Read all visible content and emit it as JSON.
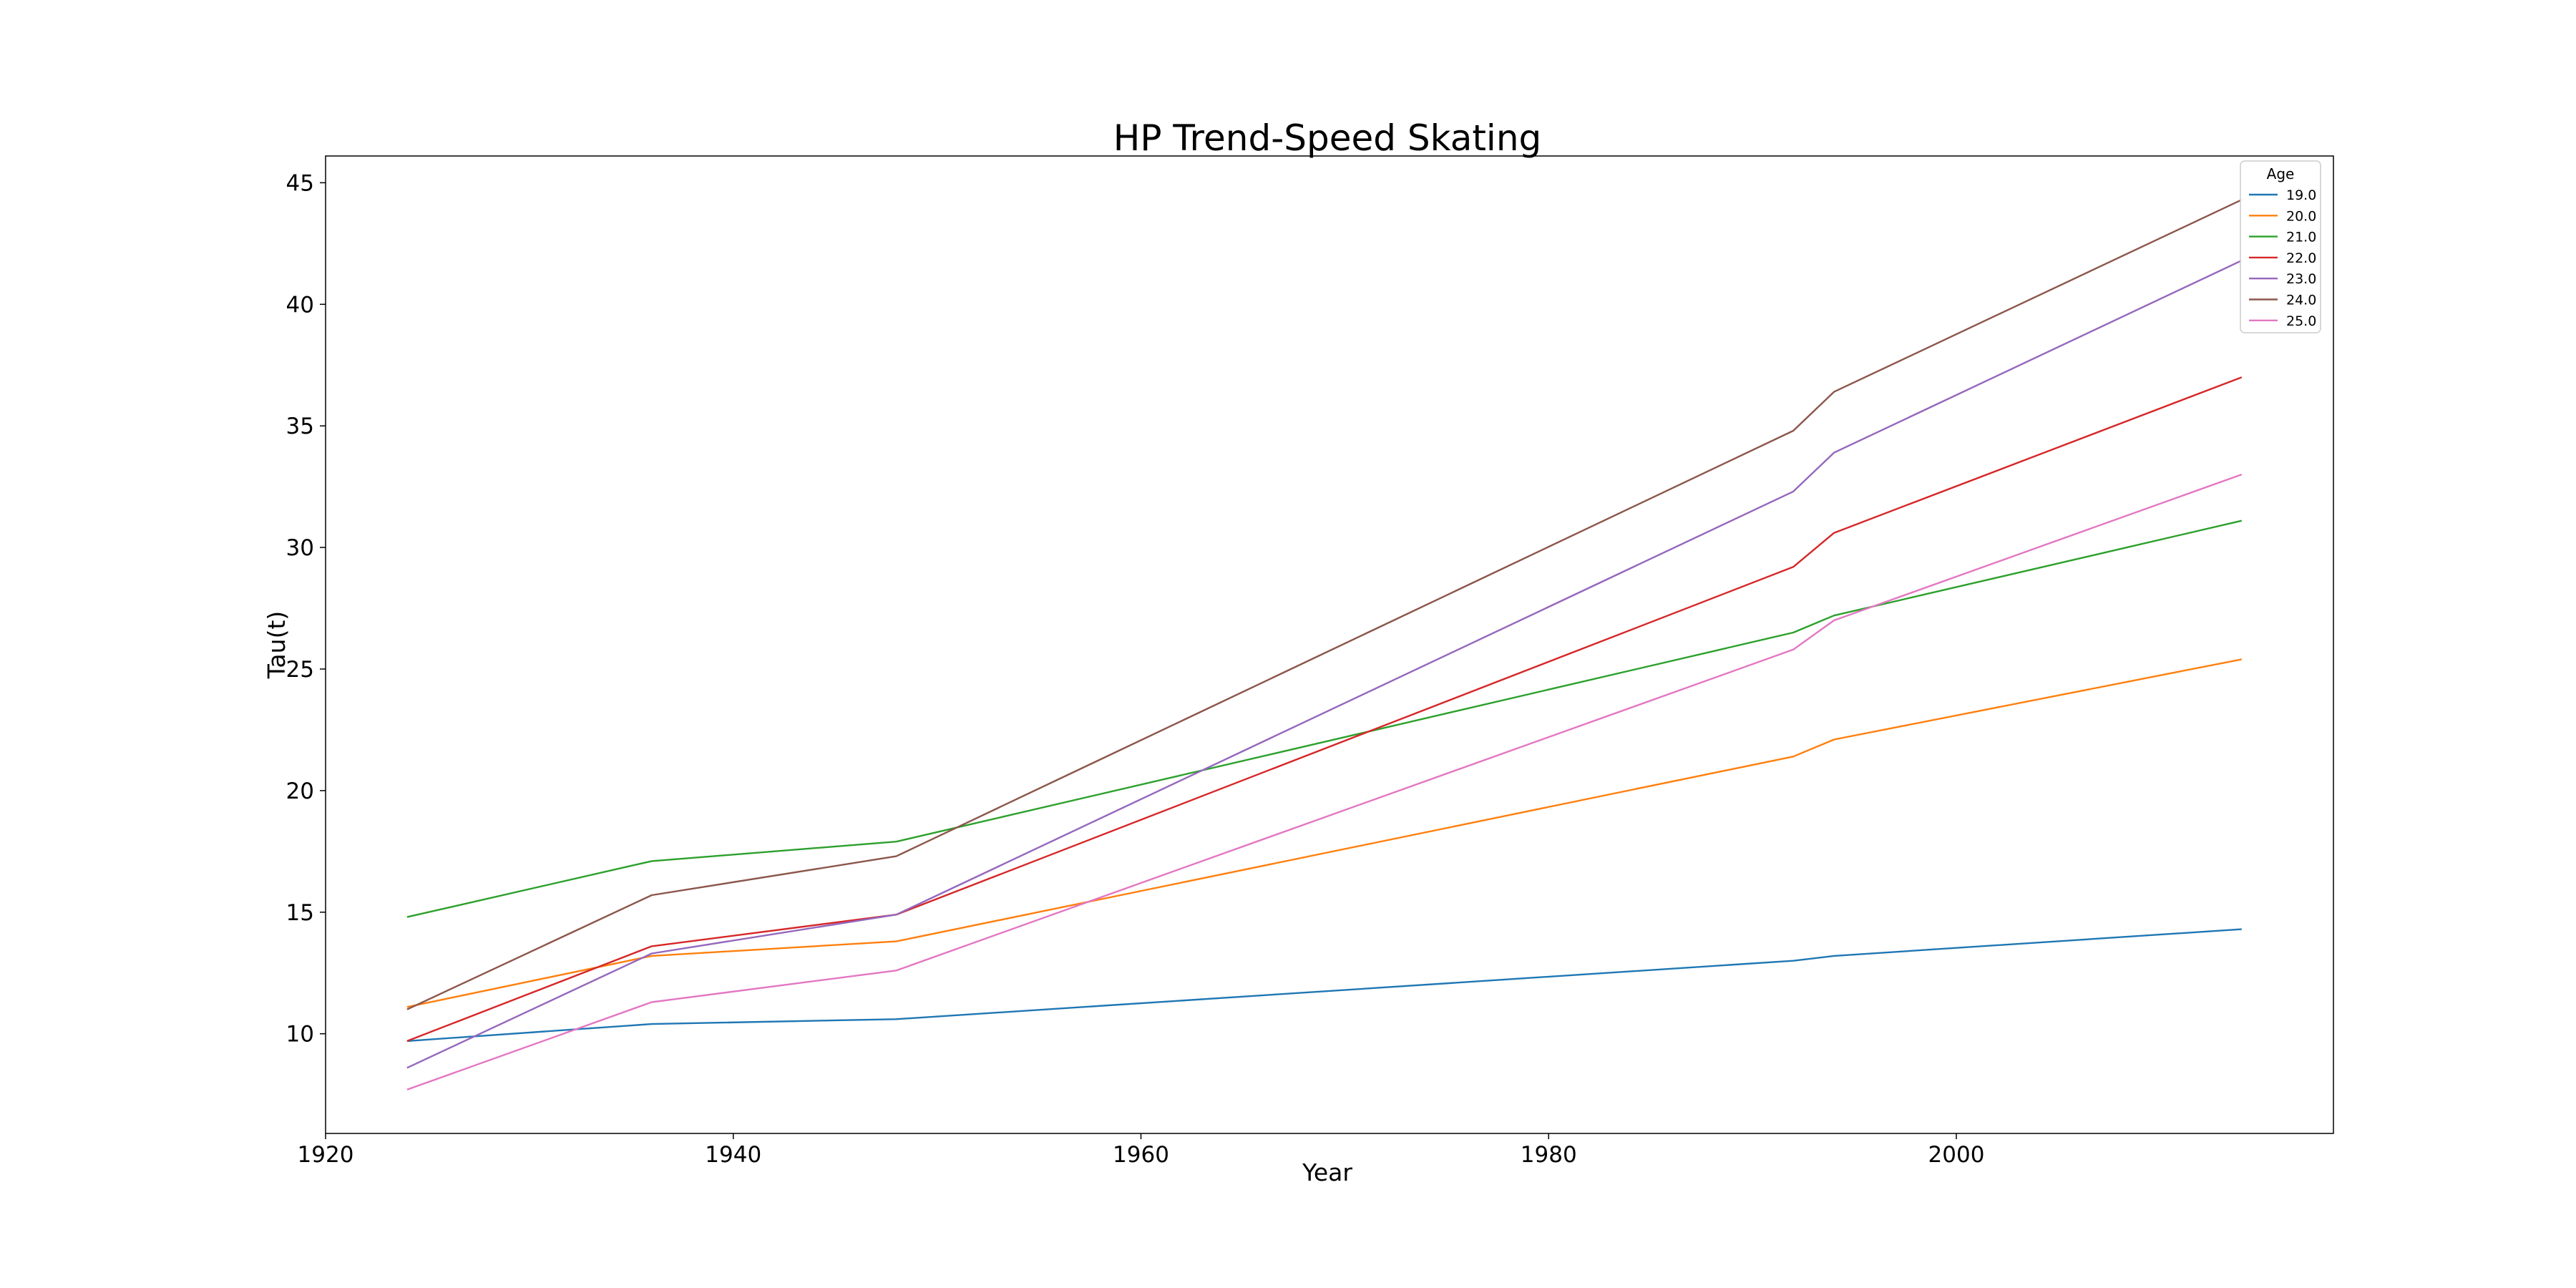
{
  "chart_data": {
    "type": "line",
    "title": "HP Trend-Speed Skating",
    "xlabel": "Year",
    "ylabel": "Tau(t)",
    "xlim": [
      1920,
      2018.5
    ],
    "ylim": [
      5.9,
      46.1
    ],
    "xticks": [
      1920,
      1940,
      1960,
      1980,
      2000
    ],
    "yticks": [
      10,
      15,
      20,
      25,
      30,
      35,
      40,
      45
    ],
    "grid": false,
    "legend": {
      "title": "Age",
      "position": "top-right"
    },
    "x": [
      1924,
      1936,
      1948,
      1992,
      1994,
      2014
    ],
    "series": [
      {
        "name": "19.0",
        "color": "#1f77b4",
        "values": [
          9.7,
          10.4,
          10.6,
          13.0,
          13.2,
          14.3
        ]
      },
      {
        "name": "20.0",
        "color": "#ff7f0e",
        "values": [
          11.1,
          13.2,
          13.8,
          21.4,
          22.1,
          25.4
        ]
      },
      {
        "name": "21.0",
        "color": "#2ca02c",
        "values": [
          14.8,
          17.1,
          17.9,
          26.5,
          27.2,
          31.1
        ]
      },
      {
        "name": "22.0",
        "color": "#d62728",
        "values": [
          9.7,
          13.6,
          14.9,
          29.2,
          30.6,
          37.0
        ]
      },
      {
        "name": "23.0",
        "color": "#9467bd",
        "values": [
          8.6,
          13.3,
          14.9,
          32.3,
          33.9,
          41.8
        ]
      },
      {
        "name": "24.0",
        "color": "#8c564b",
        "values": [
          11.0,
          15.7,
          17.3,
          34.8,
          36.4,
          44.3
        ]
      },
      {
        "name": "25.0",
        "color": "#e377c2",
        "values": [
          7.7,
          11.3,
          12.6,
          25.8,
          27.0,
          33.0
        ]
      }
    ]
  }
}
